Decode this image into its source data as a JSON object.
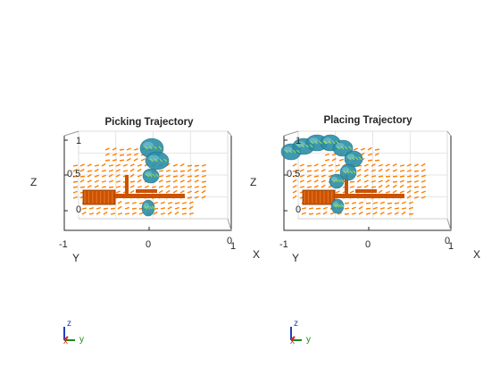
{
  "colors": {
    "arrow": "#ff7f00",
    "gripper": "#cc5200",
    "surface": "#2b8fa8",
    "surface_light": "#7ec8d6",
    "grid": "#dedede",
    "axis": "#262626",
    "triad_x": "#d62728",
    "triad_y": "#1a8a1a",
    "triad_z": "#1f3fbf"
  },
  "panels": [
    {
      "title": "Picking Trajectory",
      "zlabel": "Z",
      "ylabel": "Y",
      "xlabel": "X",
      "zticks": [
        "1",
        "0.5",
        "0"
      ],
      "yticks": [
        "-1",
        "0"
      ],
      "xticks": [
        "0",
        "1"
      ]
    },
    {
      "title": "Placing Trajectory",
      "zlabel": "Z",
      "ylabel": "Y",
      "xlabel": "X",
      "zticks": [
        "1",
        "0.5",
        "0"
      ],
      "yticks": [
        "-1",
        "0"
      ],
      "xticks": [
        "0",
        "1"
      ]
    }
  ],
  "triads": [
    {
      "z": "z",
      "x": "x",
      "y": "y"
    },
    {
      "z": "z",
      "x": "x",
      "y": "y"
    }
  ]
}
